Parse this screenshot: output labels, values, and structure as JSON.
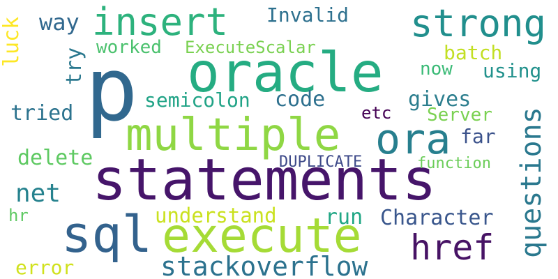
{
  "words": [
    {
      "text": "p",
      "color": "#31688e"
    },
    {
      "text": "oracle",
      "color": "#25ac82"
    },
    {
      "text": "statements",
      "color": "#46156a"
    },
    {
      "text": "multiple",
      "color": "#8fd744"
    },
    {
      "text": "execute",
      "color": "#a5db36"
    },
    {
      "text": "sql",
      "color": "#33628d"
    },
    {
      "text": "insert",
      "color": "#2db27d"
    },
    {
      "text": "strong",
      "color": "#218f8d"
    },
    {
      "text": "ora",
      "color": "#277f8e"
    },
    {
      "text": "href",
      "color": "#471365"
    },
    {
      "text": "stackoverflow",
      "color": "#2c728e"
    },
    {
      "text": "questions",
      "color": "#2a788e"
    },
    {
      "text": "net",
      "color": "#26828e"
    },
    {
      "text": "understand",
      "color": "#cae11f"
    },
    {
      "text": "run",
      "color": "#22a785"
    },
    {
      "text": "Character",
      "color": "#39568c"
    },
    {
      "text": "error",
      "color": "#d0e11c"
    },
    {
      "text": "DUPLICATE",
      "color": "#3e4a89"
    },
    {
      "text": "function",
      "color": "#6ccd5a"
    },
    {
      "text": "delete",
      "color": "#5ec962"
    },
    {
      "text": "hr",
      "color": "#5ec962"
    },
    {
      "text": "semicolon",
      "color": "#20a386"
    },
    {
      "text": "code",
      "color": "#2d708e"
    },
    {
      "text": "gives",
      "color": "#2c7e8e"
    },
    {
      "text": "Server",
      "color": "#7ad151"
    },
    {
      "text": "etc",
      "color": "#440154"
    },
    {
      "text": "far",
      "color": "#3b528b"
    },
    {
      "text": "tried",
      "color": "#2c738e"
    },
    {
      "text": "try",
      "color": "#2a788e"
    },
    {
      "text": "worked",
      "color": "#4ac16d"
    },
    {
      "text": "ExecuteScalar",
      "color": "#7ad151"
    },
    {
      "text": "batch",
      "color": "#c2df23"
    },
    {
      "text": "now",
      "color": "#3aba76"
    },
    {
      "text": "using",
      "color": "#21918c"
    },
    {
      "text": "Invalid",
      "color": "#2d708e"
    },
    {
      "text": "way",
      "color": "#31688e"
    },
    {
      "text": "luck",
      "color": "#fde725"
    }
  ]
}
